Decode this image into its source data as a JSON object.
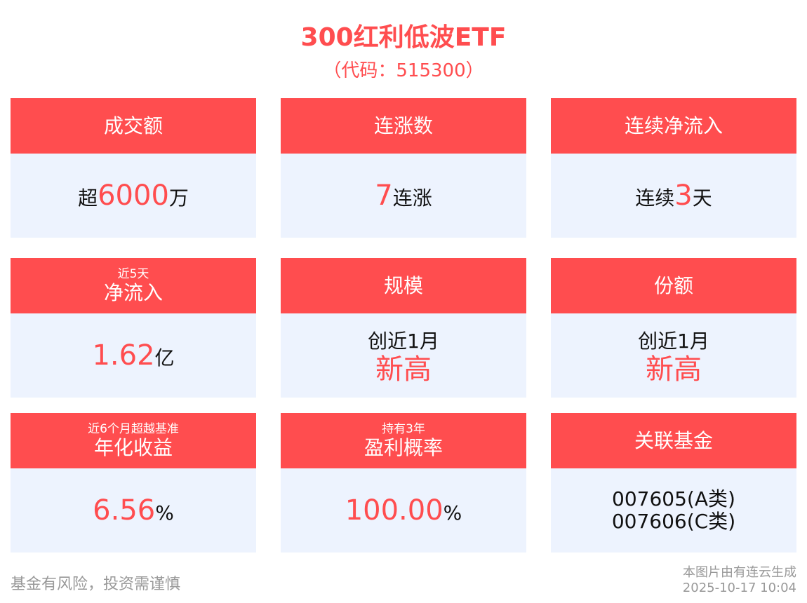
{
  "header": {
    "title": "300红利低波ETF",
    "code": "（代码：515300）"
  },
  "cards": [
    {
      "sub": "",
      "title": "成交额",
      "pre": "超",
      "num": "6000",
      "post": "万"
    },
    {
      "sub": "",
      "title": "连涨数",
      "pre": "",
      "num": "7",
      "post": "连涨"
    },
    {
      "sub": "",
      "title": "连续净流入",
      "pre": "连续",
      "num": "3",
      "post": "天"
    },
    {
      "sub": "近5天",
      "title": "净流入",
      "pre": "",
      "num": "1.62",
      "post": "亿"
    },
    {
      "sub": "",
      "title": "规模",
      "line1": "创近1月",
      "line2": "新高"
    },
    {
      "sub": "",
      "title": "份额",
      "line1": "创近1月",
      "line2": "新高"
    },
    {
      "sub": "近6个月超越基准",
      "title": "年化收益",
      "pre": "",
      "num": "6.56",
      "post": "%"
    },
    {
      "sub": "持有3年",
      "title": "盈利概率",
      "pre": "",
      "num": "100.00",
      "post": "%"
    },
    {
      "sub": "",
      "title": "关联基金",
      "funds": [
        "007605(A类)",
        "007606(C类)"
      ]
    }
  ],
  "footer": {
    "risk": "基金有风险，投资需谨慎",
    "source": "本图片由有连云生成",
    "time": "2025-10-17 10:04"
  },
  "colors": {
    "accent": "#ff4d4f",
    "card_bg": "#edf3fe"
  }
}
